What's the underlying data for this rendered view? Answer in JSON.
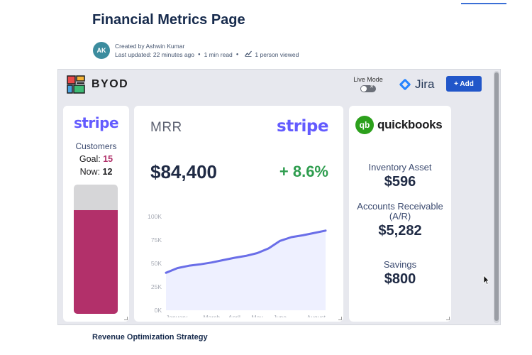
{
  "page": {
    "title": "Financial Metrics Page",
    "author_avatar": "AK",
    "created_by": "Created by Ashwin Kumar",
    "last_updated": "Last updated: 22 minutes ago",
    "read_time": "1 min read",
    "viewers": "1 person viewed",
    "section_heading": "Revenue Optimization Strategy"
  },
  "embed": {
    "brand": "BYOD",
    "live_mode_label": "Live Mode",
    "jira_label": "Jira",
    "add_button": "+ Add"
  },
  "stripe_card": {
    "logo": "stripe",
    "title": "Customers",
    "goal_label": "Goal:",
    "goal_value": "15",
    "now_label": "Now:",
    "now_value": "12",
    "progress_fraction": 0.8
  },
  "mrr_card": {
    "title": "MRR",
    "logo": "stripe",
    "value": "$84,400",
    "change": "+ 8.6%"
  },
  "quickbooks_card": {
    "logo_mark": "qb",
    "logo_text": "quickbooks",
    "inventory_label": "Inventory Asset",
    "inventory_value": "$596",
    "ar_label": "Accounts Receivable (A/R)",
    "ar_value": "$5,282",
    "savings_label": "Savings",
    "savings_value": "$800"
  },
  "colors": {
    "stripe": "#635bff",
    "gauge_fill": "#b2306a",
    "positive": "#2f9d4f",
    "line": "#6a6ee8",
    "area": "#eef0ff",
    "button": "#2156c9"
  },
  "chart_data": {
    "type": "area",
    "title": "",
    "xlabel": "",
    "ylabel": "",
    "ylim": [
      0,
      100000
    ],
    "yticks": [
      0,
      25000,
      50000,
      75000,
      100000
    ],
    "ytick_labels": [
      "0K",
      "25K",
      "50K",
      "75K",
      "100K"
    ],
    "xtick_labels": [
      "January",
      "March",
      "April",
      "May",
      "June",
      "August"
    ],
    "xtick_positions": [
      1,
      3,
      4,
      5,
      6,
      8
    ],
    "xlim": [
      1,
      8
    ],
    "x": [
      1,
      1.5,
      2,
      2.5,
      3,
      3.5,
      4,
      4.5,
      5,
      5.5,
      6,
      6.5,
      7,
      7.5,
      8
    ],
    "series": [
      {
        "values": [
          40000,
          45000,
          47500,
          49000,
          51000,
          53500,
          56000,
          58000,
          61000,
          66000,
          74000,
          78000,
          80000,
          82500,
          85000
        ]
      }
    ],
    "grid": false,
    "legend": "none"
  }
}
